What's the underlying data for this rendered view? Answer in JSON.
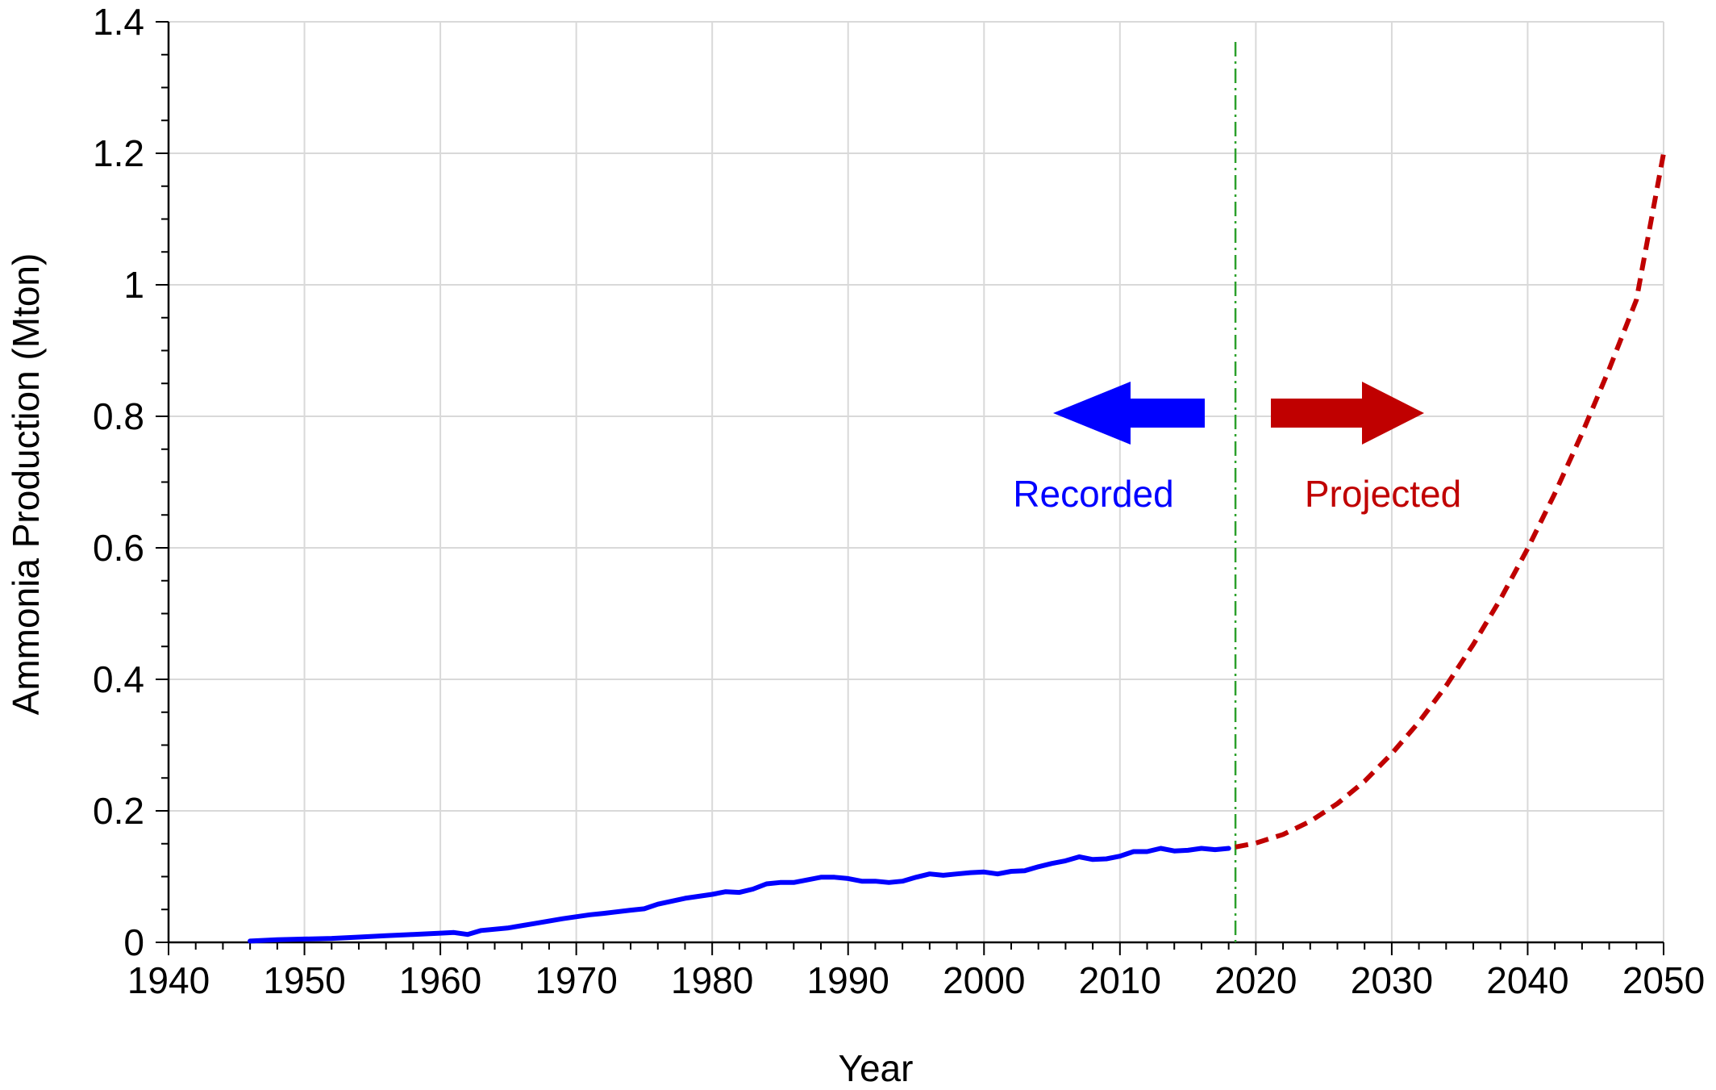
{
  "chart_data": {
    "type": "line",
    "title": "",
    "xlabel": "Year",
    "ylabel": "Ammonia Production (Mton)",
    "xlim": [
      1940,
      2050
    ],
    "ylim": [
      0,
      1.4
    ],
    "x_ticks": [
      1940,
      1950,
      1960,
      1970,
      1980,
      1990,
      2000,
      2010,
      2020,
      2030,
      2040,
      2050
    ],
    "y_ticks": [
      0,
      0.2,
      0.4,
      0.6,
      0.8,
      1,
      1.2,
      1.4
    ],
    "y_tick_labels": [
      "0",
      "0.2",
      "0.4",
      "0.6",
      "0.8",
      "1",
      "1.2",
      "1.4"
    ],
    "grid": true,
    "divider_year": 2018.5,
    "series": [
      {
        "style": "solid",
        "color": "#0000ff",
        "x": [
          1946,
          1948,
          1950,
          1952,
          1954,
          1956,
          1958,
          1960,
          1961,
          1962,
          1963,
          1965,
          1967,
          1969,
          1971,
          1972,
          1974,
          1975,
          1976,
          1978,
          1980,
          1981,
          1982,
          1983,
          1984,
          1985,
          1986,
          1987,
          1988,
          1989,
          1990,
          1991,
          1992,
          1993,
          1994,
          1995,
          1996,
          1997,
          1998,
          1999,
          2000,
          2001,
          2002,
          2003,
          2004,
          2005,
          2006,
          2007,
          2008,
          2009,
          2010,
          2011,
          2012,
          2013,
          2014,
          2015,
          2016,
          2017,
          2018
        ],
        "y": [
          0.002,
          0.004,
          0.005,
          0.006,
          0.008,
          0.01,
          0.012,
          0.014,
          0.015,
          0.012,
          0.018,
          0.022,
          0.029,
          0.036,
          0.042,
          0.044,
          0.049,
          0.051,
          0.058,
          0.067,
          0.073,
          0.077,
          0.076,
          0.081,
          0.089,
          0.091,
          0.091,
          0.095,
          0.099,
          0.099,
          0.097,
          0.093,
          0.093,
          0.091,
          0.093,
          0.099,
          0.104,
          0.102,
          0.104,
          0.106,
          0.107,
          0.104,
          0.108,
          0.109,
          0.115,
          0.12,
          0.124,
          0.13,
          0.126,
          0.127,
          0.131,
          0.138,
          0.138,
          0.143,
          0.139,
          0.14,
          0.143,
          0.141,
          0.143
        ]
      },
      {
        "style": "dashed",
        "color": "#c00000",
        "x": [
          2018.5,
          2020,
          2022,
          2024,
          2026,
          2028,
          2030,
          2032,
          2034,
          2036,
          2038,
          2040,
          2042,
          2044,
          2046,
          2048,
          2050
        ],
        "y": [
          0.145,
          0.151,
          0.164,
          0.184,
          0.211,
          0.245,
          0.287,
          0.335,
          0.39,
          0.453,
          0.522,
          0.599,
          0.683,
          0.774,
          0.872,
          0.977,
          1.2
        ]
      }
    ],
    "annotations": [
      {
        "text": "Recorded",
        "color": "#0000ff"
      },
      {
        "text": "Projected",
        "color": "#c00000"
      }
    ]
  }
}
